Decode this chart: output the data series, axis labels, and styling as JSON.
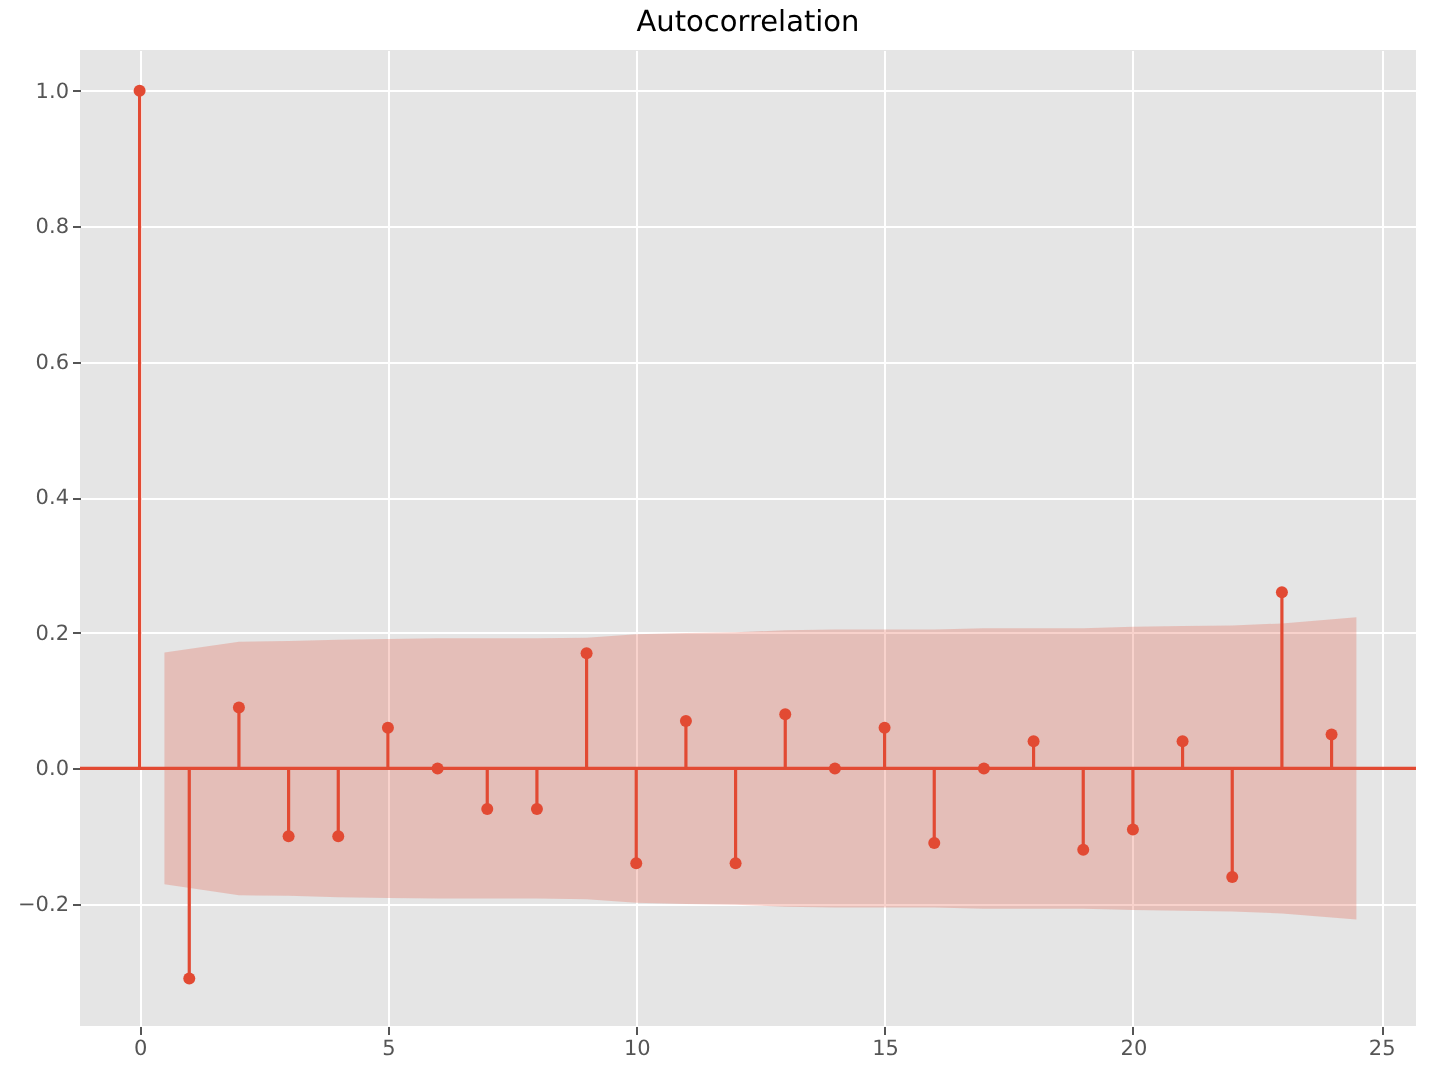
{
  "chart_data": {
    "type": "lollipop",
    "title": "Autocorrelation",
    "x": [
      0,
      1,
      2,
      3,
      4,
      5,
      6,
      7,
      8,
      9,
      10,
      11,
      12,
      13,
      14,
      15,
      16,
      17,
      18,
      19,
      20,
      21,
      22,
      23,
      24
    ],
    "series": [
      {
        "color": "#e24a33",
        "marker": "circle",
        "values": [
          1.0,
          -0.31,
          0.09,
          -0.1,
          -0.1,
          0.06,
          0.0,
          -0.06,
          -0.06,
          0.17,
          -0.14,
          0.07,
          -0.14,
          0.08,
          0.0,
          0.06,
          -0.11,
          0.0,
          0.04,
          -0.12,
          -0.09,
          0.04,
          -0.16,
          0.26,
          0.05
        ]
      },
      {
        "type": "line",
        "color": "#e24a33",
        "x": [
          -1.2,
          0.5,
          2,
          3,
          4,
          5,
          6,
          7,
          8,
          9,
          10,
          11,
          12,
          13,
          14,
          15,
          16,
          17,
          18,
          19,
          20,
          21,
          22,
          23,
          24.5,
          25.7
        ],
        "values": [
          0,
          0,
          0,
          0,
          0,
          0,
          0,
          0,
          0,
          0,
          0,
          0,
          0,
          0,
          0,
          0,
          0,
          0,
          0,
          0,
          0,
          0,
          0,
          0,
          0,
          0
        ],
        "lower": [
          null,
          -0.171,
          -0.187,
          -0.188,
          -0.19,
          -0.191,
          -0.192,
          -0.192,
          -0.192,
          -0.193,
          -0.198,
          -0.2,
          -0.201,
          -0.204,
          -0.205,
          -0.205,
          -0.205,
          -0.207,
          -0.207,
          -0.207,
          -0.209,
          -0.21,
          -0.211,
          -0.214,
          -0.223,
          null
        ],
        "upper": [
          null,
          0.171,
          0.187,
          0.188,
          0.19,
          0.191,
          0.192,
          0.192,
          0.192,
          0.193,
          0.198,
          0.2,
          0.201,
          0.204,
          0.205,
          0.205,
          0.205,
          0.207,
          0.207,
          0.207,
          0.209,
          0.21,
          0.211,
          0.214,
          0.223,
          null
        ]
      }
    ],
    "xlim": [
      -1.2,
      25.7
    ],
    "xticks": [
      0,
      5,
      10,
      15,
      20,
      25
    ],
    "ylim": [
      -0.38,
      1.06
    ],
    "yticks": [
      {
        "value": -0.2,
        "label": "−0.2"
      },
      {
        "value": 0,
        "label": "0.0"
      },
      {
        "value": 0.2,
        "label": "0.2"
      },
      {
        "value": 0.4,
        "label": "0.4"
      },
      {
        "value": 0.6,
        "label": "0.6"
      },
      {
        "value": 0.8,
        "label": "0.8"
      },
      {
        "value": 1.0,
        "label": "1.0"
      }
    ],
    "grid": true
  }
}
